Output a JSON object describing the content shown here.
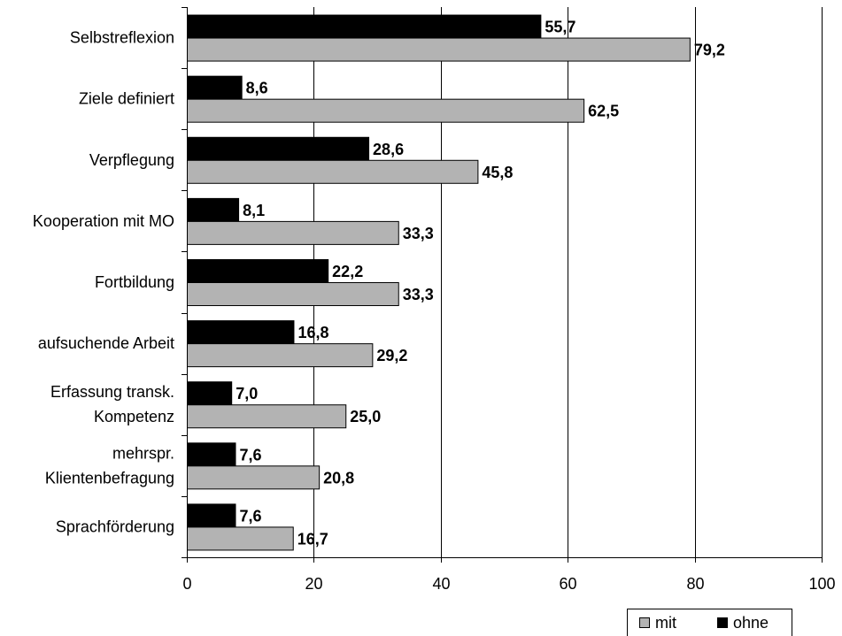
{
  "chart_data": {
    "type": "bar",
    "orientation": "horizontal",
    "categories": [
      [
        "Selbstreflexion"
      ],
      [
        "Ziele definiert"
      ],
      [
        "Verpflegung"
      ],
      [
        "Kooperation mit MO"
      ],
      [
        "Fortbildung"
      ],
      [
        "aufsuchende Arbeit"
      ],
      [
        "Erfassung transk.",
        "Kompetenz"
      ],
      [
        "mehrspr.",
        "Klientenbefragung"
      ],
      [
        "Sprachförderung"
      ]
    ],
    "series": [
      {
        "name": "ohne",
        "color": "#000000",
        "values": [
          55.7,
          8.6,
          28.6,
          8.1,
          22.2,
          16.8,
          7.0,
          7.6,
          7.6
        ],
        "labels": [
          "55,7",
          "8,6",
          "28,6",
          "8,1",
          "22,2",
          "16,8",
          "7,0",
          "7,6",
          "7,6"
        ]
      },
      {
        "name": "mit",
        "color": "#b3b3b3",
        "values": [
          79.2,
          62.5,
          45.8,
          33.3,
          33.3,
          29.2,
          25.0,
          20.8,
          16.7
        ],
        "labels": [
          "79,2",
          "62,5",
          "45,8",
          "33,3",
          "33,3",
          "29,2",
          "25,0",
          "20,8",
          "16,7"
        ]
      }
    ],
    "xlim": [
      0,
      100
    ],
    "xticks": [
      0,
      20,
      40,
      60,
      80,
      100
    ],
    "grid": "vertical",
    "legend": {
      "placement": "bottom-right",
      "order": [
        "mit",
        "ohne"
      ]
    },
    "title": "",
    "xlabel": "",
    "ylabel": ""
  }
}
